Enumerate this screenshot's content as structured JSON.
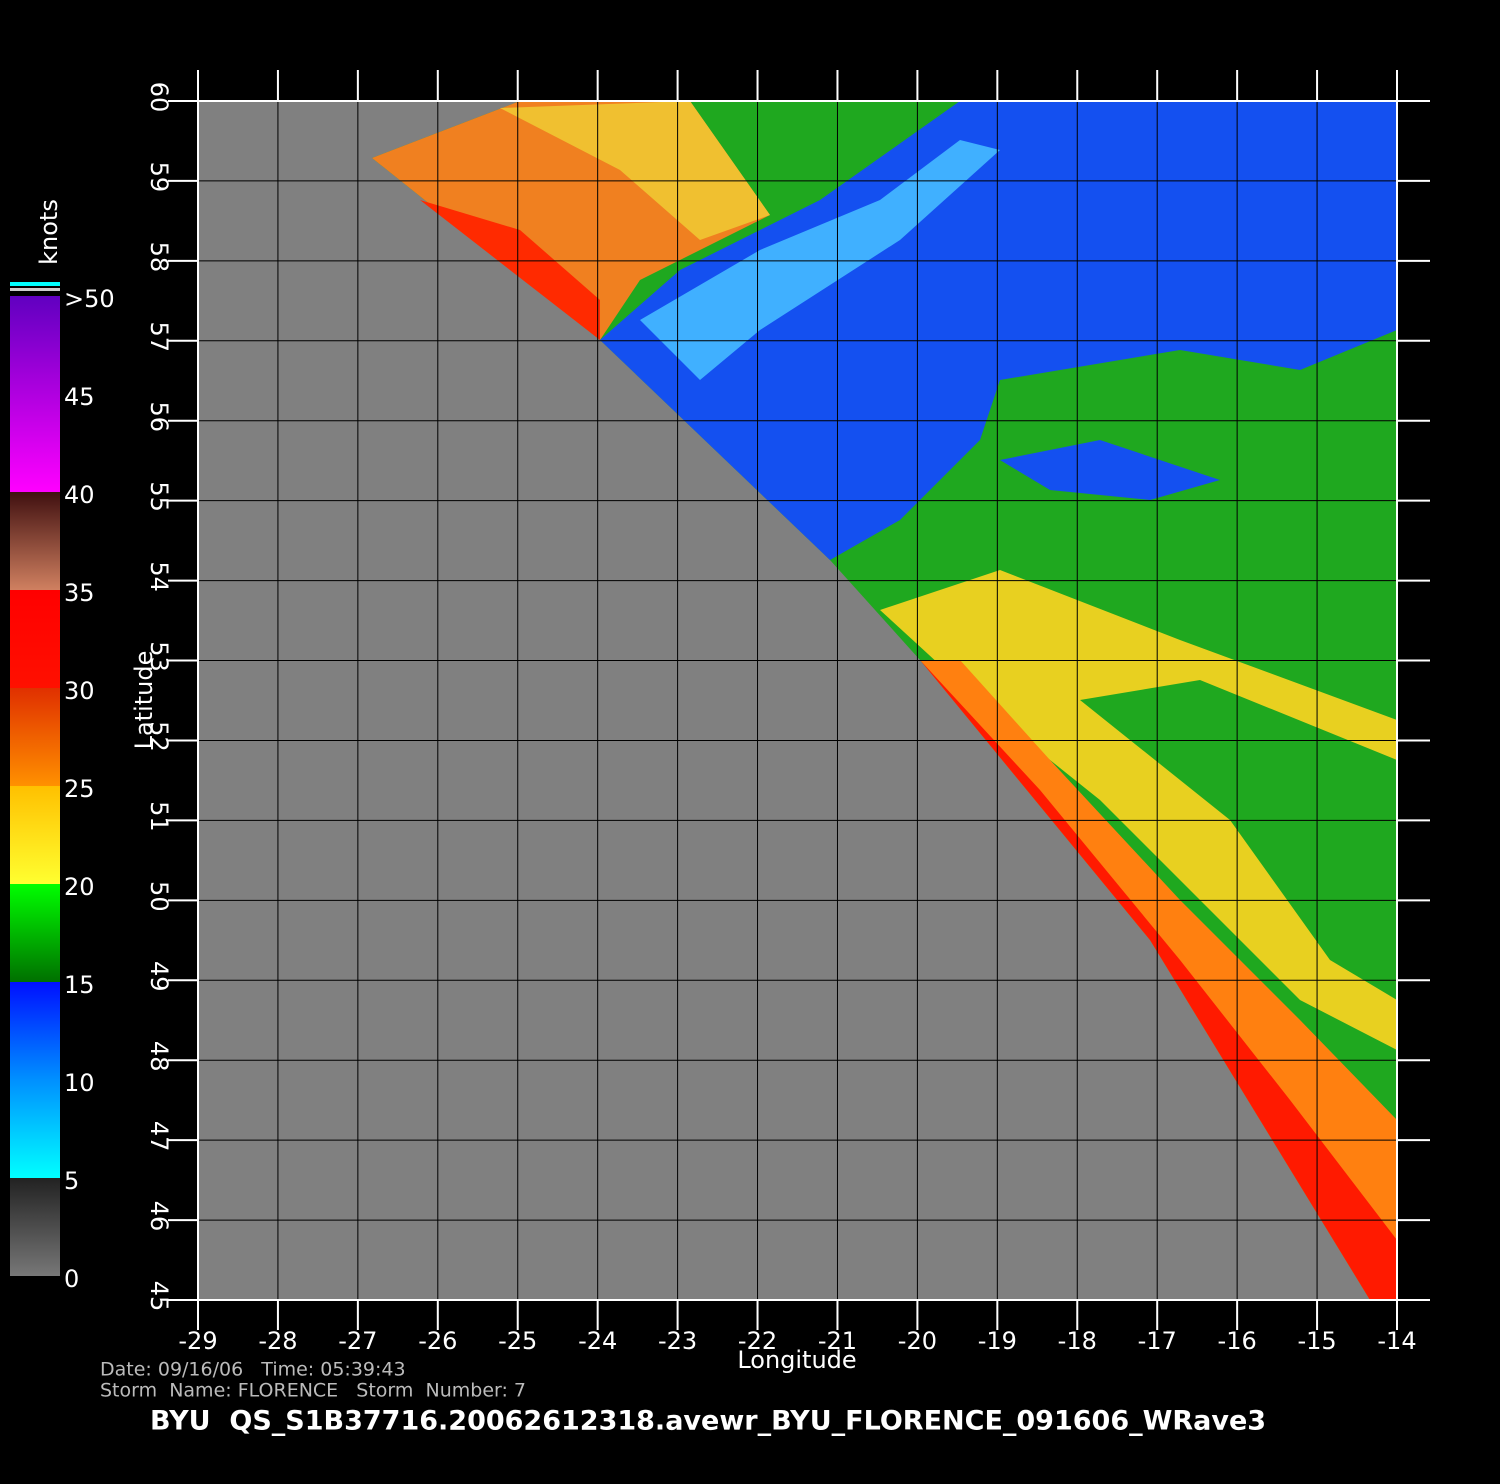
{
  "map": {
    "title": "BYU  QS_S1B37716.20062612318.avewr_BYU_FLORENCE_091606_WRave3",
    "date_line": "Date: 09/16/06   Time: 05:39:43",
    "storm_line": "Storm  Name: FLORENCE   Storm  Number: 7",
    "x_label": "Longitude",
    "y_label": "Latitude",
    "xlim": [
      -29,
      -14
    ],
    "ylim": [
      45,
      60
    ],
    "xticks": [
      -29,
      -28,
      -27,
      -26,
      -25,
      -24,
      -23,
      -22,
      -21,
      -20,
      -19,
      -18,
      -17,
      -16,
      -15,
      -14
    ],
    "yticks": [
      45,
      46,
      47,
      48,
      49,
      50,
      51,
      52,
      53,
      54,
      55,
      56,
      57,
      58,
      59,
      60
    ],
    "colorbar": {
      "label": "knots",
      "lim": [
        0,
        50
      ],
      "ticks": [
        0,
        5,
        10,
        15,
        20,
        25,
        30,
        35,
        40,
        45,
        {
          "value": 50,
          "label": ">50"
        }
      ]
    }
  }
}
